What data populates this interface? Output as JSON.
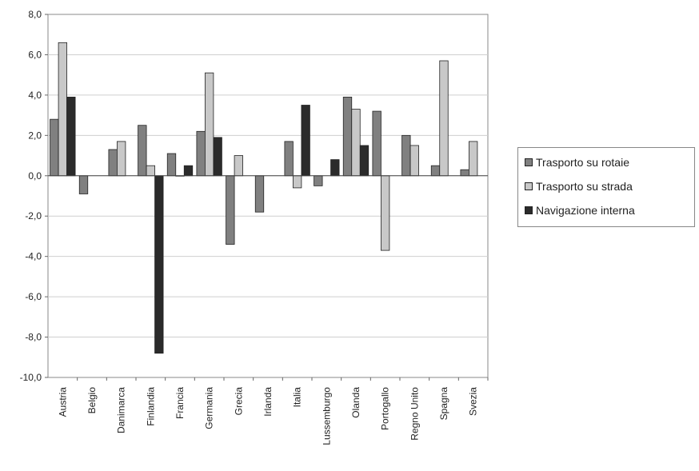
{
  "chart_data": {
    "type": "bar",
    "categories": [
      "Austria",
      "Belgio",
      "Danimarca",
      "Finlandia",
      "Francia",
      "Germania",
      "Grecia",
      "Irlanda",
      "Italia",
      "Lussemburgo",
      "Olanda",
      "Portogallo",
      "Regno Unito",
      "Spagna",
      "Svezia"
    ],
    "series": [
      {
        "name": "Trasporto su rotaie",
        "color": "#808080",
        "values": [
          2.8,
          -0.9,
          1.3,
          2.5,
          1.1,
          2.2,
          -3.4,
          -1.8,
          1.7,
          -0.5,
          3.9,
          3.2,
          2.0,
          0.5,
          0.3
        ]
      },
      {
        "name": "Trasporto su strada",
        "color": "#c8c8c8",
        "values": [
          6.6,
          null,
          1.7,
          0.5,
          0.0,
          5.1,
          1.0,
          null,
          -0.6,
          null,
          3.3,
          -3.7,
          1.5,
          5.7,
          1.7
        ]
      },
      {
        "name": "Navigazione interna",
        "color": "#2b2b2b",
        "values": [
          3.9,
          null,
          null,
          -8.8,
          0.5,
          1.9,
          null,
          null,
          3.5,
          0.8,
          1.5,
          null,
          null,
          null,
          null
        ]
      }
    ],
    "ylim": [
      -10,
      8
    ],
    "yticks": [
      "8,0",
      "6,0",
      "4,0",
      "2,0",
      "0,0",
      "-2,0",
      "-4,0",
      "-6,0",
      "-8,0",
      "-10,0"
    ],
    "ytick_values": [
      8,
      6,
      4,
      2,
      0,
      -2,
      -4,
      -6,
      -8,
      -10
    ],
    "grid": true,
    "legend": "right",
    "title": "",
    "xlabel": "",
    "ylabel": ""
  }
}
